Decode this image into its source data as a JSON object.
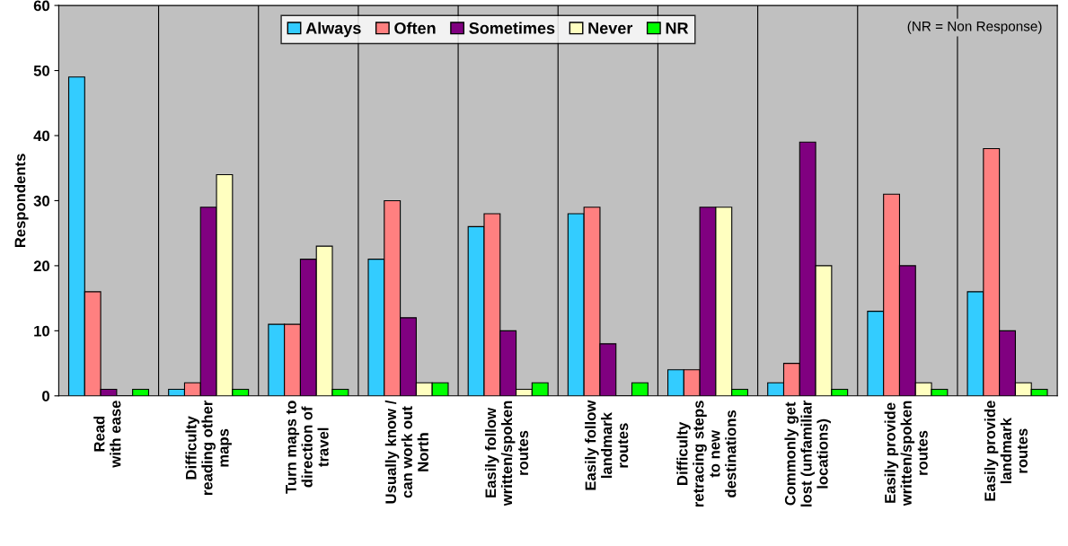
{
  "chart_data": {
    "type": "bar",
    "ylabel": "Respondents",
    "categories": [
      "Read\nwith ease",
      "Difficulty\nreading other\nmaps",
      "Turn maps to\ndirection of\ntravel",
      "Usually know /\ncan work out\nNorth",
      "Easily follow\nwritten/spoken\nroutes",
      "Easily follow\nlandmark\nroutes",
      "Difficulty\nretracing steps\nto new\ndestinations",
      "Commonly get\nlost (unfamiliar\nlocations)",
      "Easily provide\nwritten/spoken\nroutes",
      "Easily provide\nlandmark\nroutes"
    ],
    "series": [
      {
        "name": "Always",
        "color": "#33ccff",
        "values": [
          49,
          1,
          11,
          21,
          26,
          28,
          4,
          2,
          13,
          16
        ]
      },
      {
        "name": "Often",
        "color": "#ff8080",
        "values": [
          16,
          2,
          11,
          30,
          28,
          29,
          4,
          5,
          31,
          38
        ]
      },
      {
        "name": "Sometimes",
        "color": "#800080",
        "values": [
          1,
          29,
          21,
          12,
          10,
          8,
          29,
          39,
          20,
          10
        ]
      },
      {
        "name": "Never",
        "color": "#ffffc0",
        "values": [
          0,
          34,
          23,
          2,
          1,
          0,
          29,
          20,
          2,
          2
        ]
      },
      {
        "name": "NR",
        "color": "#00ff00",
        "values": [
          1,
          1,
          1,
          2,
          2,
          2,
          1,
          1,
          1,
          1
        ]
      }
    ],
    "ylim": [
      0,
      60
    ],
    "yticks": [
      0,
      10,
      20,
      30,
      40,
      50,
      60
    ],
    "grid": "x",
    "legend": "top",
    "annotations": [
      "(NR = Non Response)"
    ]
  }
}
